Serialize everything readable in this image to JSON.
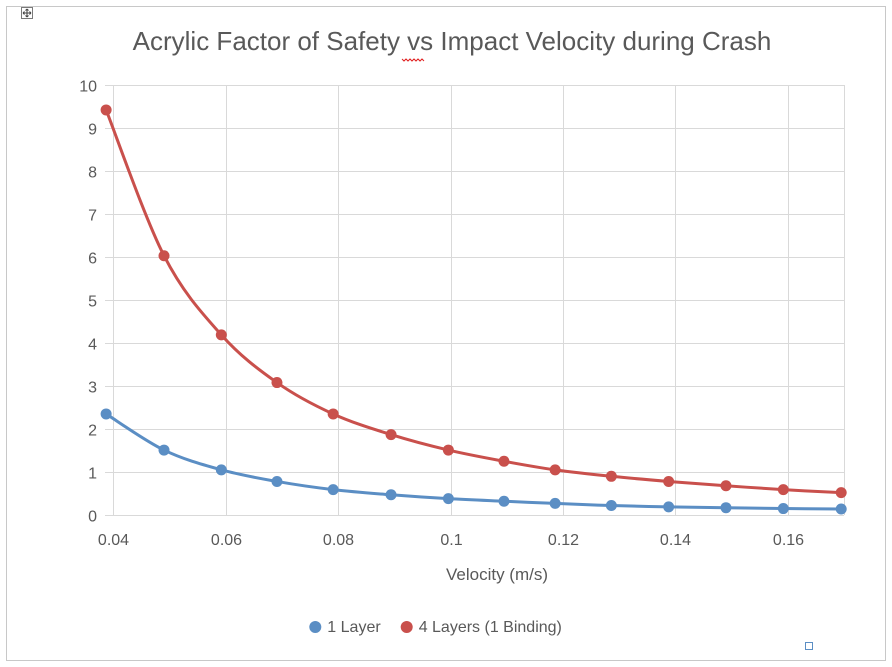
{
  "chart_data": {
    "type": "line",
    "title": "Acrylic Factor of Safety vs Impact Velocity during Crash",
    "xlabel": "Velocity (m/s)",
    "ylabel": "",
    "xlim": [
      0.0385,
      0.17
    ],
    "ylim": [
      0,
      10
    ],
    "xticks": [
      0.04,
      0.06,
      0.08,
      0.1,
      0.12,
      0.14,
      0.16
    ],
    "xtick_labels": [
      "0.04",
      "0.06",
      "0.08",
      "0.1",
      "0.12",
      "0.14",
      "0.16"
    ],
    "yticks": [
      0,
      1,
      2,
      3,
      4,
      5,
      6,
      7,
      8,
      9,
      10
    ],
    "ytick_labels": [
      "0",
      "1",
      "2",
      "3",
      "4",
      "5",
      "6",
      "7",
      "8",
      "9",
      "10"
    ],
    "grid": true,
    "legend_position": "bottom",
    "x": [
      0.0387,
      0.049,
      0.0592,
      0.0691,
      0.0791,
      0.0894,
      0.0996,
      0.1095,
      0.1186,
      0.1286,
      0.1388,
      0.149,
      0.1592,
      0.1695
    ],
    "series": [
      {
        "name": "1 Layer",
        "color": "#5b8ec4",
        "values": [
          2.35,
          1.51,
          1.05,
          0.78,
          0.59,
          0.47,
          0.38,
          0.32,
          0.27,
          0.22,
          0.19,
          0.17,
          0.15,
          0.14
        ]
      },
      {
        "name": "4 Layers (1 Binding)",
        "color": "#c9504c",
        "values": [
          9.42,
          6.03,
          4.19,
          3.08,
          2.35,
          1.87,
          1.51,
          1.25,
          1.05,
          0.9,
          0.78,
          0.68,
          0.59,
          0.52
        ]
      }
    ]
  },
  "window": {
    "corner_icons": [
      "move-handle-icon",
      "resize-handle-icon"
    ]
  }
}
